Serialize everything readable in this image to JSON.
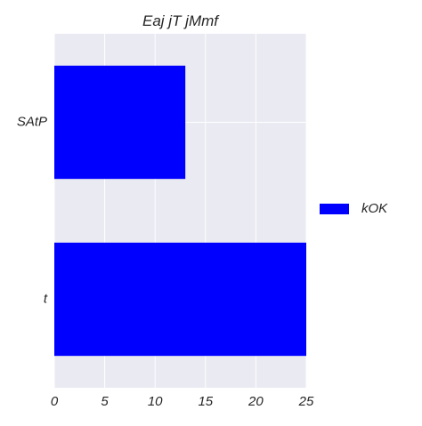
{
  "chart_data": {
    "type": "bar",
    "orientation": "horizontal",
    "title": "Eaj jT jMmf",
    "xlabel": "",
    "ylabel": "",
    "categories": [
      "SAtP",
      "t"
    ],
    "series": [
      {
        "name": "kOK",
        "values": [
          13,
          25
        ],
        "color": "#0000ff"
      }
    ],
    "xlim": [
      0,
      25
    ],
    "xticks": [
      0,
      5,
      10,
      15,
      20,
      25
    ],
    "grid": true,
    "legend_position": "right"
  },
  "colors": {
    "plot_background": "#eaeaf2",
    "grid": "#ffffff",
    "text": "#262626"
  }
}
